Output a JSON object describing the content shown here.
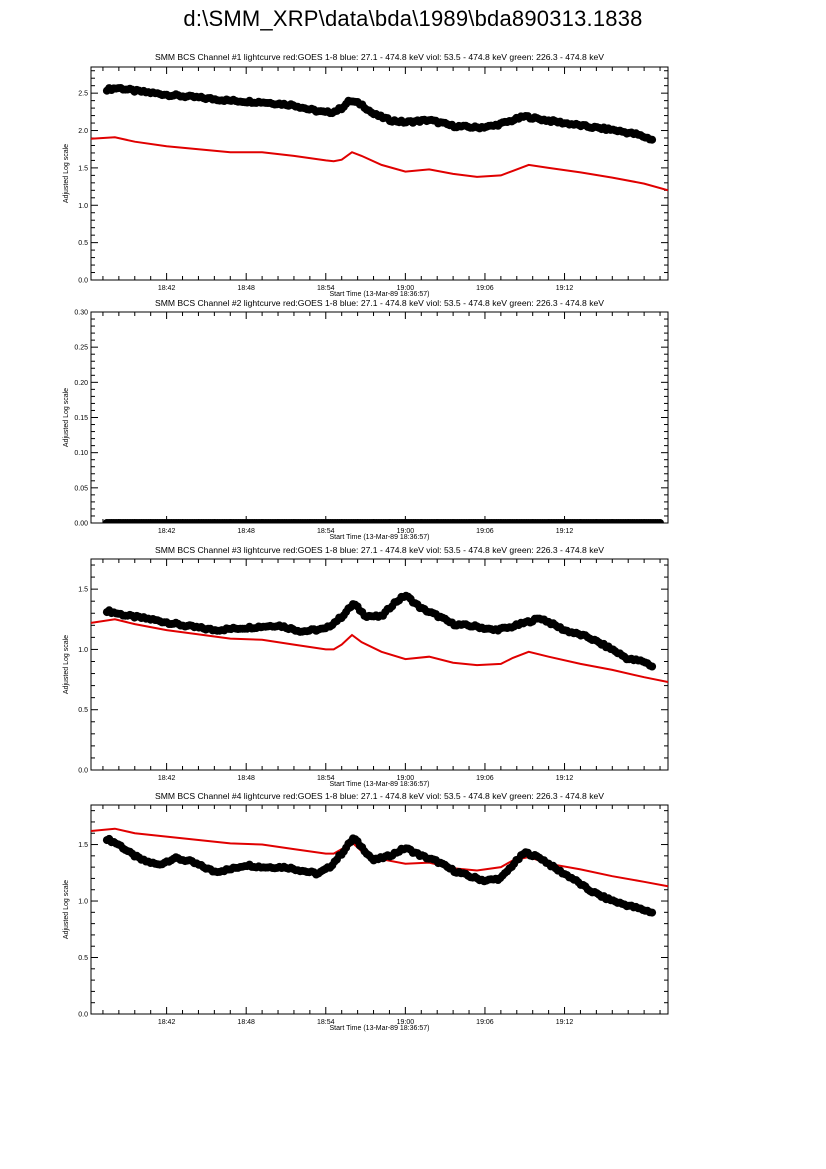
{
  "page": {
    "title": "d:\\SMM_XRP\\data\\bda\\1989\\bda890313.1838"
  },
  "colors": {
    "goes": "#e00000",
    "data": "#000000"
  },
  "chart_data": [
    {
      "type": "scatter",
      "title": "SMM BCS Channel #1 lightcurve  red:GOES 1-8  blue: 27.1 - 474.8 keV  viol: 53.5 - 474.8 keV  green: 226.3 - 474.8 keV",
      "xlabel": "Start Time (13-Mar-89 18:36:57)",
      "ylabel": "Adjusted Log scale",
      "xlim": [
        18.605,
        19.33
      ],
      "ylim": [
        0,
        2.85
      ],
      "xticks": [
        "18:42",
        "18:48",
        "18:54",
        "19:00",
        "19:06",
        "19:12"
      ],
      "xtick_values": [
        18.7,
        18.8,
        18.9,
        19.0,
        19.1,
        19.2
      ],
      "yticks": [
        "0.0",
        "0.5",
        "1.0",
        "1.5",
        "2.0",
        "2.5"
      ],
      "ytick_values": [
        0,
        0.5,
        1.0,
        1.5,
        2.0,
        2.5
      ],
      "series": [
        {
          "color": "#e00000",
          "style": "line",
          "x": [
            18.605,
            18.635,
            18.66,
            18.7,
            18.78,
            18.82,
            18.86,
            18.9,
            18.91,
            18.92,
            18.933,
            18.945,
            18.97,
            19.0,
            19.03,
            19.06,
            19.09,
            19.12,
            19.135,
            19.155,
            19.18,
            19.22,
            19.26,
            19.3,
            19.33
          ],
          "y": [
            1.89,
            1.91,
            1.85,
            1.79,
            1.71,
            1.71,
            1.66,
            1.6,
            1.59,
            1.61,
            1.71,
            1.66,
            1.54,
            1.45,
            1.48,
            1.42,
            1.38,
            1.4,
            1.46,
            1.54,
            1.5,
            1.44,
            1.37,
            1.29,
            1.2
          ]
        },
        {
          "color": "#000000",
          "style": "dots",
          "x": [
            18.625,
            18.64,
            18.66,
            18.7,
            18.74,
            18.78,
            18.82,
            18.86,
            18.88,
            18.9,
            18.91,
            18.92,
            18.93,
            18.945,
            18.96,
            18.98,
            19.0,
            19.03,
            19.06,
            19.09,
            19.11,
            19.13,
            19.15,
            19.17,
            19.2,
            19.23,
            19.26,
            19.29,
            19.31
          ],
          "y": [
            2.55,
            2.57,
            2.53,
            2.48,
            2.44,
            2.4,
            2.38,
            2.34,
            2.28,
            2.24,
            2.25,
            2.3,
            2.4,
            2.35,
            2.22,
            2.14,
            2.11,
            2.14,
            2.06,
            2.04,
            2.06,
            2.12,
            2.19,
            2.15,
            2.1,
            2.05,
            2.01,
            1.95,
            1.88
          ]
        }
      ]
    },
    {
      "type": "scatter",
      "title": "SMM BCS Channel #2 lightcurve  red:GOES 1-8  blue: 27.1 - 474.8 keV  viol: 53.5 - 474.8 keV  green: 226.3 - 474.8 keV",
      "xlabel": "Start Time (13-Mar-89 18:36:57)",
      "ylabel": "Adjusted Log scale",
      "xlim": [
        18.605,
        19.33
      ],
      "ylim": [
        0,
        0.3
      ],
      "xticks": [
        "18:42",
        "18:48",
        "18:54",
        "19:00",
        "19:06",
        "19:12"
      ],
      "xtick_values": [
        18.7,
        18.8,
        18.9,
        19.0,
        19.1,
        19.2
      ],
      "yticks": [
        "0.00",
        "0.05",
        "0.10",
        "0.15",
        "0.20",
        "0.25",
        "0.30"
      ],
      "ytick_values": [
        0,
        0.05,
        0.1,
        0.15,
        0.2,
        0.25,
        0.3
      ],
      "series": [
        {
          "color": "#000000",
          "style": "dots",
          "x": [
            18.625,
            19.32
          ],
          "y": [
            0,
            0
          ],
          "dense": true
        }
      ]
    },
    {
      "type": "scatter",
      "title": "SMM BCS Channel #3 lightcurve  red:GOES 1-8  blue: 27.1 - 474.8 keV  viol: 53.5 - 474.8 keV  green: 226.3 - 474.8 keV",
      "xlabel": "Start Time (13-Mar-89 18:36:57)",
      "ylabel": "Adjusted Log scale",
      "xlim": [
        18.605,
        19.33
      ],
      "ylim": [
        0,
        1.75
      ],
      "xticks": [
        "18:42",
        "18:48",
        "18:54",
        "19:00",
        "19:06",
        "19:12"
      ],
      "xtick_values": [
        18.7,
        18.8,
        18.9,
        19.0,
        19.1,
        19.2
      ],
      "yticks": [
        "0.0",
        "0.5",
        "1.0",
        "1.5"
      ],
      "ytick_values": [
        0,
        0.5,
        1.0,
        1.5
      ],
      "series": [
        {
          "color": "#e00000",
          "style": "line",
          "x": [
            18.605,
            18.635,
            18.66,
            18.7,
            18.78,
            18.82,
            18.86,
            18.9,
            18.91,
            18.92,
            18.933,
            18.945,
            18.97,
            19.0,
            19.03,
            19.06,
            19.09,
            19.12,
            19.135,
            19.155,
            19.18,
            19.22,
            19.26,
            19.3,
            19.33
          ],
          "y": [
            1.22,
            1.25,
            1.21,
            1.16,
            1.09,
            1.08,
            1.04,
            1.0,
            1.0,
            1.04,
            1.12,
            1.06,
            0.98,
            0.92,
            0.94,
            0.89,
            0.87,
            0.88,
            0.93,
            0.98,
            0.94,
            0.88,
            0.83,
            0.77,
            0.73
          ]
        },
        {
          "color": "#000000",
          "style": "dots",
          "x": [
            18.625,
            18.65,
            18.68,
            18.72,
            18.76,
            18.8,
            18.84,
            18.87,
            18.9,
            18.92,
            18.935,
            18.95,
            18.97,
            18.985,
            19.0,
            19.02,
            19.04,
            19.06,
            19.09,
            19.11,
            19.13,
            19.15,
            19.17,
            19.2,
            19.23,
            19.26,
            19.28,
            19.3,
            19.31
          ],
          "y": [
            1.32,
            1.28,
            1.25,
            1.2,
            1.16,
            1.18,
            1.2,
            1.15,
            1.17,
            1.27,
            1.38,
            1.28,
            1.27,
            1.38,
            1.45,
            1.34,
            1.28,
            1.21,
            1.19,
            1.16,
            1.18,
            1.22,
            1.26,
            1.16,
            1.1,
            1.0,
            0.92,
            0.9,
            0.86
          ]
        }
      ]
    },
    {
      "type": "scatter",
      "title": "SMM BCS Channel #4 lightcurve  red:GOES 1-8  blue: 27.1 - 474.8 keV  viol: 53.5 - 474.8 keV  green: 226.3 - 474.8 keV",
      "xlabel": "Start Time (13-Mar-89 18:36:57)",
      "ylabel": "Adjusted Log scale",
      "xlim": [
        18.605,
        19.33
      ],
      "ylim": [
        0,
        1.85
      ],
      "xticks": [
        "18:42",
        "18:48",
        "18:54",
        "19:00",
        "19:06",
        "19:12"
      ],
      "xtick_values": [
        18.7,
        18.8,
        18.9,
        19.0,
        19.1,
        19.2
      ],
      "yticks": [
        "0.0",
        "0.5",
        "1.0",
        "1.5"
      ],
      "ytick_values": [
        0,
        0.5,
        1.0,
        1.5
      ],
      "series": [
        {
          "color": "#e00000",
          "style": "line",
          "x": [
            18.605,
            18.635,
            18.66,
            18.7,
            18.78,
            18.82,
            18.86,
            18.9,
            18.91,
            18.92,
            18.933,
            18.945,
            18.97,
            19.0,
            19.03,
            19.06,
            19.09,
            19.12,
            19.135,
            19.155,
            19.18,
            19.22,
            19.26,
            19.3,
            19.33
          ],
          "y": [
            1.62,
            1.64,
            1.6,
            1.57,
            1.51,
            1.5,
            1.46,
            1.42,
            1.42,
            1.46,
            1.52,
            1.44,
            1.37,
            1.33,
            1.34,
            1.29,
            1.27,
            1.3,
            1.36,
            1.39,
            1.33,
            1.28,
            1.22,
            1.17,
            1.13
          ]
        },
        {
          "color": "#000000",
          "style": "dots",
          "x": [
            18.625,
            18.64,
            18.655,
            18.67,
            18.69,
            18.71,
            18.73,
            18.76,
            18.78,
            18.8,
            18.82,
            18.85,
            18.87,
            18.89,
            18.905,
            18.92,
            18.935,
            18.945,
            18.96,
            18.98,
            19.0,
            19.02,
            19.04,
            19.06,
            19.08,
            19.1,
            19.12,
            19.135,
            19.15,
            19.17,
            19.19,
            19.21,
            19.23,
            19.25,
            19.27,
            19.29,
            19.31
          ],
          "y": [
            1.55,
            1.5,
            1.42,
            1.36,
            1.32,
            1.38,
            1.35,
            1.26,
            1.28,
            1.32,
            1.3,
            1.3,
            1.27,
            1.24,
            1.3,
            1.42,
            1.56,
            1.48,
            1.36,
            1.4,
            1.47,
            1.4,
            1.35,
            1.27,
            1.22,
            1.18,
            1.2,
            1.32,
            1.43,
            1.38,
            1.28,
            1.2,
            1.1,
            1.03,
            0.98,
            0.94,
            0.9
          ]
        }
      ]
    }
  ]
}
